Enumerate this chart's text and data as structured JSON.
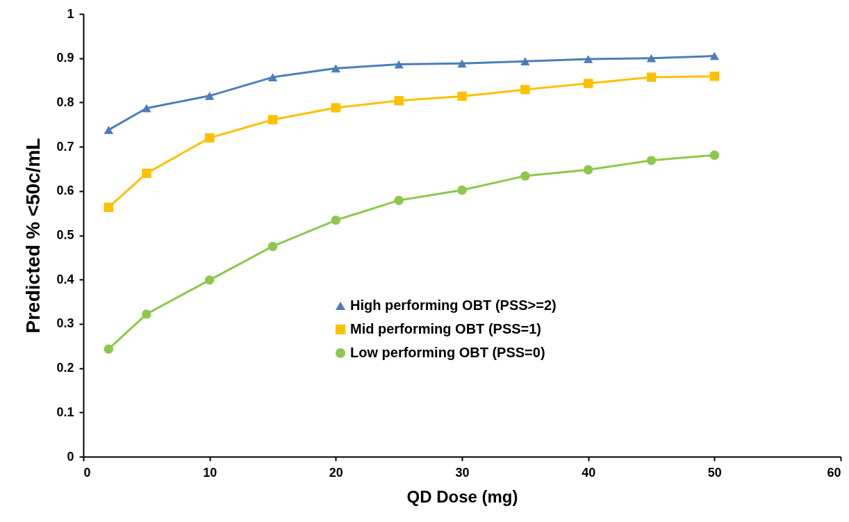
{
  "chart_data": {
    "type": "line",
    "xlabel": "QD Dose (mg)",
    "ylabel": "Predicted % <50c/mL",
    "x": [
      2,
      5,
      10,
      15,
      20,
      25,
      30,
      35,
      40,
      45,
      50
    ],
    "series": [
      {
        "name": "High performing OBT (PSS>=2)",
        "color": "#4a7ebb",
        "marker": "triangle",
        "values": [
          0.738,
          0.787,
          0.815,
          0.857,
          0.877,
          0.886,
          0.888,
          0.893,
          0.898,
          0.9,
          0.905
        ]
      },
      {
        "name": "Mid performing OBT (PSS=1)",
        "color": "#ffc000",
        "marker": "square",
        "values": [
          0.563,
          0.64,
          0.72,
          0.761,
          0.788,
          0.804,
          0.814,
          0.829,
          0.843,
          0.857,
          0.859
        ]
      },
      {
        "name": "Low performing OBT (PSS=0)",
        "color": "#8cc84b",
        "marker": "circle",
        "values": [
          0.243,
          0.322,
          0.399,
          0.475,
          0.534,
          0.579,
          0.602,
          0.634,
          0.648,
          0.669,
          0.681
        ]
      }
    ],
    "xlim": [
      0,
      60
    ],
    "xticks": [
      0,
      10,
      20,
      30,
      40,
      50,
      60
    ],
    "ylim": [
      0,
      1
    ],
    "yticks": [
      0,
      0.1,
      0.2,
      0.3,
      0.4,
      0.5,
      0.6,
      0.7,
      0.8,
      0.9,
      1
    ],
    "grid": false,
    "legend": "right",
    "line_style": "solid"
  }
}
